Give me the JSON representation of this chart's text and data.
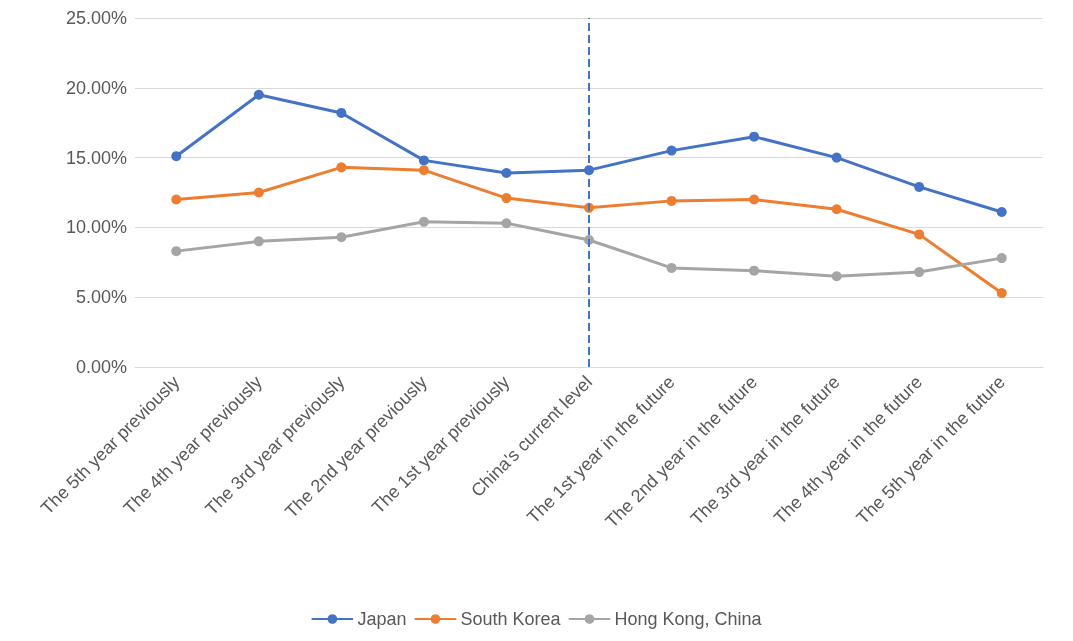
{
  "chart_data": {
    "type": "line",
    "categories": [
      "The 5th year previously",
      "The 4th year previously",
      "The 3rd year previously",
      "The 2nd year previously",
      "The 1st year previously",
      "China's current level",
      "The 1st year in the future",
      "The 2nd year in the future",
      "The 3rd year in the future",
      "The 4th year in the future",
      "The 5th year in the future"
    ],
    "series": [
      {
        "name": "Japan",
        "color": "#4472c4",
        "values": [
          15.1,
          19.5,
          18.2,
          14.8,
          13.9,
          14.1,
          15.5,
          16.5,
          15.0,
          12.9,
          11.1
        ]
      },
      {
        "name": "South Korea",
        "color": "#ed7d31",
        "values": [
          12.0,
          12.5,
          14.3,
          14.1,
          12.1,
          11.4,
          11.9,
          12.0,
          11.3,
          9.5,
          5.3
        ]
      },
      {
        "name": "Hong Kong, China",
        "color": "#a5a5a5",
        "values": [
          8.3,
          9.0,
          9.3,
          10.4,
          10.3,
          9.1,
          7.1,
          6.9,
          6.5,
          6.8,
          7.8
        ]
      }
    ],
    "ylim": [
      0,
      25
    ],
    "yticks": [
      {
        "value": 0,
        "label": "0.00%"
      },
      {
        "value": 5,
        "label": "5.00%"
      },
      {
        "value": 10,
        "label": "10.00%"
      },
      {
        "value": 15,
        "label": "15.00%"
      },
      {
        "value": 20,
        "label": "20.00%"
      },
      {
        "value": 25,
        "label": "25.00%"
      }
    ],
    "ref_lines": [
      {
        "axis": "x",
        "value": "China's current level",
        "color": "#4472c4",
        "line_style": "dashed"
      }
    ],
    "grid": "y",
    "legend": "bottom",
    "marker": "circle",
    "line_style": "solid"
  }
}
